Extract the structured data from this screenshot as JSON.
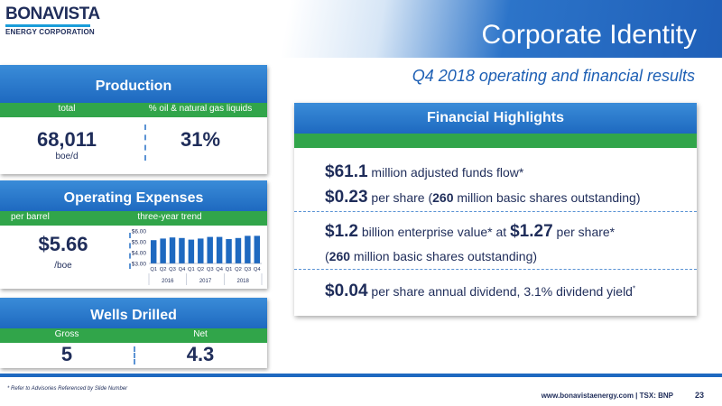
{
  "logo": {
    "line1": "BONAVISTA",
    "line2": "ENERGY CORPORATION"
  },
  "header": {
    "title": "Corporate Identity",
    "subtitle": "Q4 2018 operating and financial results"
  },
  "production": {
    "title": "Production",
    "col1_label": "total",
    "col2_label": "% oil & natural gas liquids",
    "total_value": "68,011",
    "total_unit": "boe/d",
    "liquids_pct": "31%"
  },
  "opex": {
    "title": "Operating Expenses",
    "col1_label": "per barrel",
    "col2_label": "three-year trend",
    "value": "$5.66",
    "unit": "/boe"
  },
  "chart_data": {
    "type": "bar",
    "categories": [
      "Q1",
      "Q2",
      "Q3",
      "Q4",
      "Q1",
      "Q2",
      "Q3",
      "Q4",
      "Q1",
      "Q2",
      "Q3",
      "Q4"
    ],
    "groups": [
      "2016",
      "2017",
      "2018"
    ],
    "values": [
      5.15,
      5.3,
      5.4,
      5.35,
      5.2,
      5.3,
      5.45,
      5.45,
      5.25,
      5.35,
      5.55,
      5.55
    ],
    "y_ticks": [
      "$6.00",
      "$5.00",
      "$4.00",
      "$3.00"
    ],
    "ylim": [
      3,
      6
    ],
    "bar_color": "#1e69c0",
    "title": "",
    "xlabel": "",
    "ylabel": ""
  },
  "wells": {
    "title": "Wells Drilled",
    "col1_label": "Gross",
    "col2_label": "Net",
    "gross": "5",
    "net": "4.3"
  },
  "financial": {
    "title": "Financial Highlights",
    "line1_big": "$61.1",
    "line1_rest": " million adjusted funds flow*",
    "line2_big": "$0.23",
    "line2_rest_a": " per share (",
    "line2_bold": "260",
    "line2_rest_b": " million basic shares outstanding)",
    "line3_big": "$1.2",
    "line3_rest_a": " billion enterprise value* at ",
    "line3_big2": "$1.27",
    "line3_rest_b": " per share*",
    "line4_a": "(",
    "line4_bold": "260",
    "line4_b": " million basic shares outstanding)",
    "line5_big": "$0.04",
    "line5_rest": " per share annual dividend, 3.1% dividend yield",
    "line5_sup": "*"
  },
  "footer": {
    "advisory": "* Refer to Advisories Referenced by Slide Number",
    "website": "www.bonavistaenergy.com  |  TSX: BNP",
    "page": "23"
  },
  "colors": {
    "accent_blue": "#1e69c0",
    "accent_green": "#31a54a",
    "navy": "#1f2d5a"
  }
}
